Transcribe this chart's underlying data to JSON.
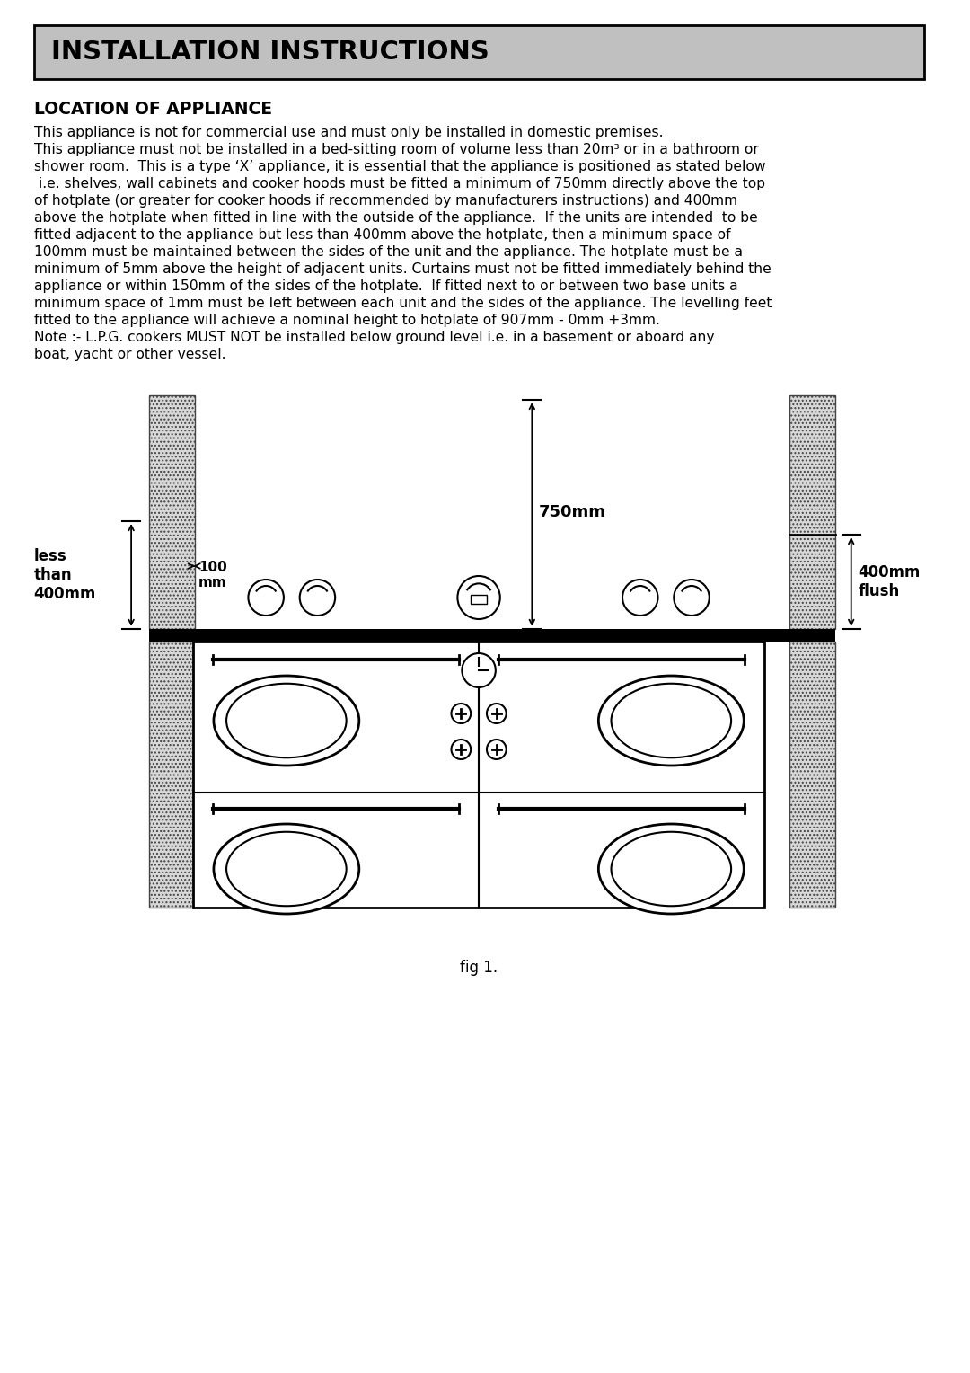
{
  "title_banner": "INSTALLATION INSTRUCTIONS",
  "title_banner_bg": "#c0c0c0",
  "title_banner_fontsize": 21,
  "section_title": "LOCATION OF APPLIANCE",
  "body_text": [
    "This appliance is not for commercial use and must only be installed in domestic premises.",
    "This appliance must not be installed in a bed-sitting room of volume less than 20m³ or in a bathroom or",
    "shower room.  This is a type ‘X’ appliance, it is essential that the appliance is positioned as stated below",
    " i.e. shelves, wall cabinets and cooker hoods must be fitted a minimum of 750mm directly above the top",
    "of hotplate (or greater for cooker hoods if recommended by manufacturers instructions) and 400mm",
    "above the hotplate when fitted in line with the outside of the appliance.  If the units are intended  to be",
    "fitted adjacent to the appliance but less than 400mm above the hotplate, then a minimum space of",
    "100mm must be maintained between the sides of the unit and the appliance. The hotplate must be a",
    "minimum of 5mm above the height of adjacent units. Curtains must not be fitted immediately behind the",
    "appliance or within 150mm of the sides of the hotplate.  If fitted next to or between two base units a",
    "minimum space of 1mm must be left between each unit and the sides of the appliance. The levelling feet",
    "fitted to the appliance will achieve a nominal height to hotplate of 907mm - 0mm +3mm.",
    "Note :- L.P.G. cookers MUST NOT be installed below ground level i.e. in a basement or aboard any",
    "boat, yacht or other vessel."
  ],
  "fig_caption": "fig 1.",
  "label_100mm": "100\nmm",
  "label_750mm": "750mm",
  "label_less_than_400mm": "less\nthan\n400mm",
  "label_400mm_flush": "400mm\nflush",
  "bg_color": "#ffffff",
  "text_color": "#000000",
  "body_fontsize": 11.2,
  "section_fontsize": 13.5
}
